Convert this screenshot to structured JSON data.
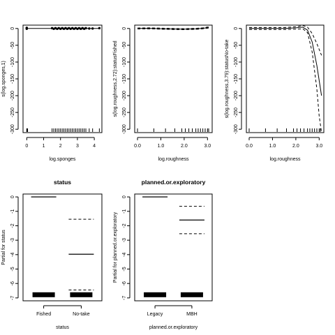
{
  "chart_data": [
    {
      "id": "p1",
      "type": "line",
      "title": "",
      "xlabel": "log.sponges",
      "ylabel": "s(log.sponges,1)",
      "xlim": [
        -0.22,
        4.45
      ],
      "ylim": [
        -310,
        10
      ],
      "xticks": [
        0,
        1,
        2,
        3,
        4
      ],
      "yticks": [
        0,
        -50,
        -100,
        -150,
        -200,
        -250,
        -300
      ],
      "series": [
        {
          "style": "solid",
          "x": [
            0,
            4.3
          ],
          "y": [
            0,
            0
          ]
        }
      ],
      "points": {
        "x": [
          0,
          0,
          0,
          1.5,
          1.6,
          1.7,
          1.8,
          1.9,
          2.0,
          2.1,
          2.2,
          2.3,
          2.4,
          2.5,
          2.6,
          2.7,
          2.8,
          2.9,
          3.0,
          3.1,
          3.2,
          3.3,
          3.4,
          3.5,
          3.7,
          3.9,
          4.3
        ],
        "y": [
          -1,
          1,
          2,
          1,
          -1,
          1,
          -1,
          1,
          -1,
          1,
          -1,
          1,
          -1,
          1,
          -1,
          1,
          -1,
          1,
          -1,
          1,
          -1,
          1,
          -1,
          1,
          0,
          0,
          1
        ]
      },
      "rug": [
        0,
        0.02,
        0.05,
        1.5,
        1.6,
        1.7,
        1.8,
        1.9,
        2.0,
        2.1,
        2.2,
        2.3,
        2.4,
        2.5,
        2.6,
        2.7,
        2.8,
        2.9,
        3.0,
        3.1,
        3.2,
        3.3,
        3.4,
        3.5,
        3.7,
        3.9,
        4.3
      ]
    },
    {
      "id": "p2",
      "type": "line",
      "title": "",
      "xlabel": "log.roughness",
      "ylabel": "s(log.roughness,2.72):statusFished",
      "xlim": [
        -0.12,
        3.2
      ],
      "ylim": [
        -310,
        10
      ],
      "xticks": [
        0.0,
        1.0,
        2.0,
        3.0
      ],
      "xticklabels": [
        "0.0",
        "1.0",
        "2.0",
        "3.0"
      ],
      "yticks": [
        0,
        -50,
        -100,
        -150,
        -200,
        -250,
        -300
      ],
      "series": [
        {
          "style": "solid",
          "x": [
            0,
            0.5,
            1.0,
            1.5,
            2.0,
            2.5,
            2.8,
            3.05
          ],
          "y": [
            0,
            0.5,
            -0.5,
            -1.5,
            -2,
            -1,
            0.5,
            3
          ]
        },
        {
          "style": "dashed",
          "x": [
            0,
            0.5,
            1.0,
            1.5,
            2.0,
            2.5,
            2.8,
            3.05
          ],
          "y": [
            1.5,
            2,
            1,
            0,
            -0.5,
            0.5,
            2,
            5
          ]
        },
        {
          "style": "dashed",
          "x": [
            0,
            0.5,
            1.0,
            1.5,
            2.0,
            2.5,
            2.8,
            3.05
          ],
          "y": [
            -1.5,
            -1,
            -2,
            -3,
            -3.5,
            -2.5,
            -1,
            1
          ]
        }
      ],
      "rug": [
        0,
        0.7,
        1.2,
        1.6,
        1.9,
        2.05,
        2.2,
        2.35,
        2.5,
        2.6,
        2.7,
        2.8,
        2.9,
        3.0,
        3.05
      ]
    },
    {
      "id": "p3",
      "type": "line",
      "title": "",
      "xlabel": "log.roughness",
      "ylabel": "s(log.roughness,3.79):statusNo-take",
      "xlim": [
        -0.12,
        3.2
      ],
      "ylim": [
        -310,
        10
      ],
      "xticks": [
        0.0,
        1.0,
        2.0,
        3.0
      ],
      "xticklabels": [
        "0.0",
        "1.0",
        "2.0",
        "3.0"
      ],
      "yticks": [
        0,
        -50,
        -100,
        -150,
        -200,
        -250,
        -300
      ],
      "series": [
        {
          "style": "solid",
          "x": [
            0,
            0.5,
            1.0,
            1.5,
            2.0,
            2.3,
            2.5,
            2.7,
            2.9,
            3.1
          ],
          "y": [
            0,
            0,
            0,
            0,
            2,
            4,
            -5,
            -40,
            -110,
            -200
          ]
        },
        {
          "style": "dashed",
          "x": [
            0,
            0.5,
            1.0,
            1.5,
            2.0,
            2.3,
            2.5,
            2.7,
            2.9,
            3.1
          ],
          "y": [
            3,
            3,
            3,
            3,
            5,
            9,
            4,
            -15,
            -45,
            -80
          ]
        },
        {
          "style": "dashed",
          "x": [
            0,
            0.5,
            1.0,
            1.5,
            2.0,
            2.3,
            2.5,
            2.7,
            2.9,
            3.0,
            3.1
          ],
          "y": [
            -3,
            -3,
            -3,
            -3,
            -2,
            -1,
            -12,
            -70,
            -180,
            -260,
            -310
          ]
        }
      ],
      "rug": [
        0,
        0.7,
        1.2,
        1.6,
        1.9,
        2.05,
        2.2,
        2.35,
        2.5,
        2.6,
        2.7,
        2.8,
        2.9,
        3.0,
        3.05
      ]
    },
    {
      "id": "p4",
      "type": "bar",
      "title": "status",
      "xlabel": "status",
      "ylabel": "Partial for status",
      "categories": [
        "Fished",
        "No-take"
      ],
      "xlim": [
        0.45,
        2.55
      ],
      "ylim": [
        -7.2,
        0.2
      ],
      "yticks": [
        0,
        -1,
        -2,
        -3,
        -4,
        -5,
        -6,
        -7
      ],
      "values": [
        0,
        -3.97
      ],
      "upper": [
        0,
        -1.55
      ],
      "lower": [
        0,
        -6.45
      ],
      "rug_y": -6.78
    },
    {
      "id": "p5",
      "type": "bar",
      "title": "planned.or.exploratory",
      "xlabel": "planned.or.exploratory",
      "ylabel": "Partial for planned.or.exploratory",
      "categories": [
        "Legacy",
        "MBH"
      ],
      "xlim": [
        0.45,
        2.55
      ],
      "ylim": [
        -7.2,
        0.2
      ],
      "yticks": [
        0,
        -1,
        -2,
        -3,
        -4,
        -5,
        -6,
        -7
      ],
      "values": [
        0,
        -1.6
      ],
      "upper": [
        0,
        -0.65
      ],
      "lower": [
        0,
        -2.55
      ],
      "rug_y": -6.78
    }
  ]
}
